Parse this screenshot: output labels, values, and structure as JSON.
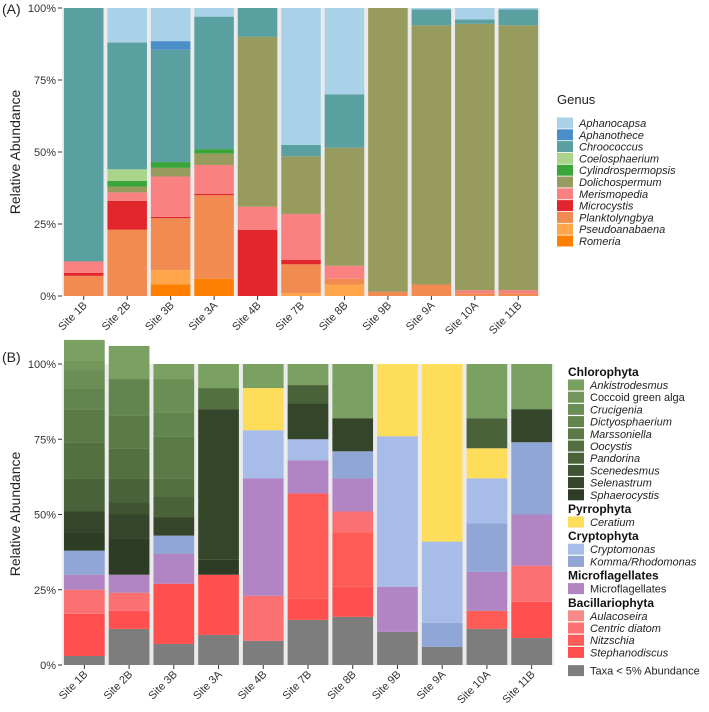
{
  "chart_data": [
    {
      "type": "bar",
      "stacked": true,
      "panel_label": "(A)",
      "ylabel": "Relative Abundance",
      "ylim": [
        0,
        100
      ],
      "yticks": [
        "0%",
        "25%",
        "50%",
        "75%",
        "100%"
      ],
      "legend_title": "Genus",
      "categories": [
        "Site 1B",
        "Site 2B",
        "Site 3B",
        "Site 3A",
        "Site 4B",
        "Site 7B",
        "Site 8B",
        "Site 9B",
        "Site 9A",
        "Site 10A",
        "Site 11B"
      ],
      "series": [
        {
          "name": "Romeria",
          "color": "#ff8000",
          "italic": true,
          "values": [
            0,
            0,
            4,
            6,
            0,
            0,
            0,
            0,
            0,
            0,
            0
          ]
        },
        {
          "name": "Pseudoanabaena",
          "color": "#ffa64d",
          "italic": true,
          "values": [
            0,
            0,
            5,
            0,
            0,
            1,
            4,
            0,
            0,
            0,
            0
          ]
        },
        {
          "name": "Planktolyngbya",
          "color": "#f18b52",
          "italic": true,
          "values": [
            7,
            23,
            18,
            29,
            0,
            10,
            2,
            1.5,
            4,
            1,
            1
          ]
        },
        {
          "name": "Microcystis",
          "color": "#e2272c",
          "italic": true,
          "values": [
            1,
            10,
            0.5,
            0.5,
            23,
            1.5,
            0,
            0,
            0,
            0,
            0
          ]
        },
        {
          "name": "Merismopedia",
          "color": "#f98181",
          "italic": true,
          "values": [
            4,
            3,
            14,
            10,
            8,
            16,
            4.5,
            0,
            0,
            1,
            1
          ]
        },
        {
          "name": "Dolichospermum",
          "color": "#979b5e",
          "italic": true,
          "values": [
            0,
            2,
            3,
            4,
            59,
            20,
            41,
            98.5,
            90,
            92.5,
            92
          ]
        },
        {
          "name": "Cylindrospermopsis",
          "color": "#3aa63a",
          "italic": true,
          "values": [
            0,
            2,
            2,
            1.5,
            0,
            0,
            0,
            0,
            0,
            0,
            0
          ]
        },
        {
          "name": "Coelosphaerium",
          "color": "#a9d48a",
          "italic": true,
          "values": [
            0,
            4,
            0,
            0,
            0,
            0,
            0,
            0,
            0,
            0,
            0
          ]
        },
        {
          "name": "Chroococcus",
          "color": "#5ba0a0",
          "italic": true,
          "values": [
            88,
            44,
            39,
            46,
            10,
            4,
            18.5,
            0,
            5.5,
            1.5,
            5.5
          ]
        },
        {
          "name": "Aphanothece",
          "color": "#4a8fc9",
          "italic": true,
          "values": [
            0,
            0,
            3,
            0,
            0,
            0,
            0,
            0,
            0,
            0,
            0
          ]
        },
        {
          "name": "Aphanocapsa",
          "color": "#a9d1e8",
          "italic": true,
          "values": [
            0,
            12,
            11.5,
            3,
            0,
            47.5,
            30,
            0,
            0.5,
            4,
            0.5
          ]
        }
      ]
    },
    {
      "type": "bar",
      "stacked": true,
      "panel_label": "(B)",
      "ylabel": "Relative Abundance",
      "ylim": [
        0,
        100
      ],
      "yticks": [
        "0%",
        "25%",
        "50%",
        "75%",
        "100%"
      ],
      "categories": [
        "Site 1B",
        "Site 2B",
        "Site 3B",
        "Site 3A",
        "Site 4B",
        "Site 7B",
        "Site 8B",
        "Site 9B",
        "Site 9A",
        "Site 10A",
        "Site 11B"
      ],
      "legend_groups": [
        {
          "name": "Chlorophyta",
          "series": [
            "Ankistrodesmus",
            "Coccoid green alga",
            "Crucigenia",
            "Dictyosphaerium",
            "Marssoniella",
            "Oocystis",
            "Pandorina",
            "Scenedesmus",
            "Selenastrum",
            "Sphaerocystis"
          ]
        },
        {
          "name": "Pyrrophyta",
          "series": [
            "Ceratium"
          ]
        },
        {
          "name": "Cryptophyta",
          "series": [
            "Cryptomonas",
            "Komma/Rhodomonas"
          ]
        },
        {
          "name": "Microflagellates",
          "series": [
            "Microflagellates"
          ]
        },
        {
          "name": "Bacillariophyta",
          "series": [
            "Aulacoseira",
            "Centric diatom",
            "Nitzschia",
            "Stephanodiscus"
          ]
        },
        {
          "name": "",
          "series": [
            "Taxa < 5% Abundance"
          ]
        }
      ],
      "series": [
        {
          "name": "Taxa < 5% Abundance",
          "color": "#7d7d7d",
          "italic": false,
          "values": [
            3,
            12,
            7,
            10,
            8,
            15,
            16,
            11,
            6,
            12,
            9
          ]
        },
        {
          "name": "Stephanodiscus",
          "color": "#ff4f4f",
          "italic": true,
          "values": [
            14,
            6,
            20,
            20,
            0,
            7,
            10,
            0,
            0,
            0,
            12
          ]
        },
        {
          "name": "Nitzschia",
          "color": "#ff5c57",
          "italic": true,
          "values": [
            0,
            0,
            0,
            0,
            0,
            35,
            18,
            0,
            0,
            6,
            0
          ]
        },
        {
          "name": "Centric diatom",
          "color": "#fb7070",
          "italic": true,
          "values": [
            8,
            6,
            0,
            0,
            15,
            0,
            7,
            0,
            0,
            0,
            12
          ]
        },
        {
          "name": "Aulacoseira",
          "color": "#f88a8a",
          "italic": true,
          "values": [
            0,
            0,
            0,
            0,
            0,
            0,
            0,
            0,
            0,
            0,
            0
          ]
        },
        {
          "name": "Microflagellates",
          "color": "#b184c3",
          "italic": false,
          "values": [
            5,
            6,
            10,
            0,
            39,
            11,
            11,
            15,
            0,
            13,
            17
          ]
        },
        {
          "name": "Komma/Rhodomonas",
          "color": "#8fa6d6",
          "italic": true,
          "values": [
            8,
            0,
            6,
            0,
            0,
            0,
            9,
            0,
            8,
            16,
            24
          ]
        },
        {
          "name": "Cryptomonas",
          "color": "#a7bce9",
          "italic": true,
          "values": [
            0,
            0,
            0,
            0,
            16,
            7,
            0,
            50,
            27,
            15,
            0
          ]
        },
        {
          "name": "Ceratium",
          "color": "#fedd5a",
          "italic": true,
          "values": [
            0,
            0,
            0,
            0,
            14,
            0,
            0,
            24,
            59,
            10,
            0
          ]
        },
        {
          "name": "Sphaerocystis",
          "color": "#2e3c25",
          "italic": true,
          "values": [
            6,
            12,
            0,
            5,
            0,
            0,
            0,
            0,
            0,
            0,
            0
          ]
        },
        {
          "name": "Selenastrum",
          "color": "#34452a",
          "italic": true,
          "values": [
            7,
            8,
            6,
            50,
            0,
            12,
            11,
            0,
            0,
            0,
            11
          ]
        },
        {
          "name": "Scenedesmus",
          "color": "#3f5431",
          "italic": true,
          "values": [
            0,
            4,
            0,
            0,
            0,
            0,
            0,
            0,
            0,
            0,
            0
          ]
        },
        {
          "name": "Pandorina",
          "color": "#4a6239",
          "italic": true,
          "values": [
            11,
            8,
            7,
            0,
            0,
            6,
            0,
            0,
            0,
            10,
            0
          ]
        },
        {
          "name": "Oocystis",
          "color": "#537041",
          "italic": true,
          "values": [
            12,
            10,
            6,
            7,
            0,
            0,
            0,
            0,
            0,
            0,
            0
          ]
        },
        {
          "name": "Marssoniella",
          "color": "#5a7a47",
          "italic": true,
          "values": [
            11,
            11,
            14,
            0,
            0,
            0,
            0,
            0,
            0,
            0,
            0
          ]
        },
        {
          "name": "Dictyosphaerium",
          "color": "#62844e",
          "italic": true,
          "values": [
            7,
            12,
            8,
            0,
            0,
            0,
            0,
            0,
            0,
            0,
            0
          ]
        },
        {
          "name": "Crucigenia",
          "color": "#6b8e55",
          "italic": true,
          "values": [
            6,
            0,
            11,
            0,
            0,
            0,
            0,
            0,
            0,
            0,
            0
          ]
        },
        {
          "name": "Coccoid green alga",
          "color": "#73975b",
          "italic": false,
          "values": [
            3,
            0,
            0,
            0,
            0,
            0,
            0,
            0,
            0,
            0,
            0
          ]
        },
        {
          "name": "Ankistrodesmus",
          "color": "#7aa062",
          "italic": true,
          "values": [
            7,
            11,
            5,
            8,
            8,
            7,
            18,
            0,
            0,
            18,
            15
          ]
        }
      ]
    }
  ]
}
